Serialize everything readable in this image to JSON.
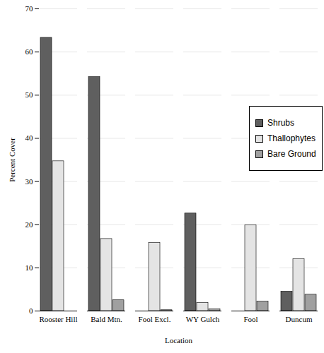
{
  "chart_data": {
    "type": "bar",
    "x_label": "Location",
    "y_label": "Percent Cover",
    "categories": [
      "Rooster Hill",
      "Bald Mtn.",
      "Fool Excl.",
      "WY Gulch",
      "Fool",
      "Duncum"
    ],
    "series": [
      {
        "name": "Shrubs",
        "color": "#5f5f5f",
        "values": [
          63.3,
          54.2,
          0,
          22.6,
          0,
          4.5
        ]
      },
      {
        "name": "Thallophytes",
        "color": "#e4e4e4",
        "values": [
          34.7,
          16.7,
          15.8,
          1.9,
          19.9,
          12.0
        ]
      },
      {
        "name": "Bare Ground",
        "color": "#a0a0a0",
        "values": [
          0,
          2.5,
          0.2,
          0.4,
          2.2,
          3.8
        ]
      }
    ],
    "ylim": [
      0,
      70
    ],
    "yticks": [
      0,
      10,
      20,
      30,
      40,
      50,
      60,
      70
    ],
    "grid": true,
    "legend": "upper right"
  }
}
